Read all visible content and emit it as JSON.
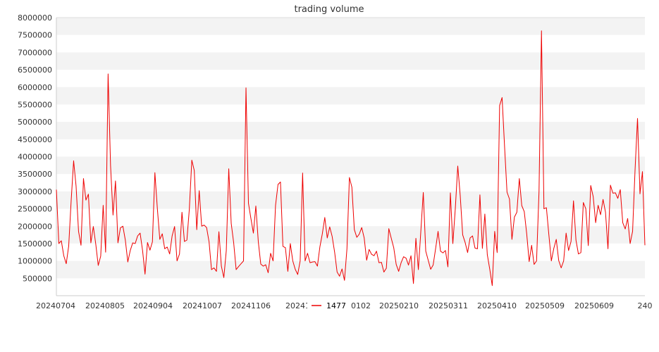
{
  "chart_data": {
    "type": "line",
    "title": "trading volume",
    "xlabel": "",
    "ylabel": "",
    "ylim": [
      0,
      8000000
    ],
    "yticks": [
      500000,
      1000000,
      1500000,
      2000000,
      2500000,
      3000000,
      3500000,
      4000000,
      4500000,
      5000000,
      5500000,
      6000000,
      6500000,
      7000000,
      7500000,
      8000000
    ],
    "xtick_labels": [
      "20240704",
      "20240805",
      "20240904",
      "20241007",
      "20241106",
      "202412",
      "0102",
      "20250210",
      "20250311",
      "20250410",
      "20250509",
      "20250609",
      "240"
    ],
    "grid": "horizontal-bands",
    "legend": {
      "position": "bottom-center",
      "entries": [
        "1477"
      ]
    },
    "series": [
      {
        "name": "1477",
        "color": "#ee0000",
        "values": [
          3050000,
          1500000,
          1580000,
          1150000,
          920000,
          1430000,
          2730000,
          3880000,
          3150000,
          1850000,
          1450000,
          3370000,
          2750000,
          2920000,
          1520000,
          1990000,
          1480000,
          870000,
          1140000,
          2600000,
          1250000,
          6380000,
          3740000,
          2320000,
          3300000,
          1520000,
          1950000,
          2000000,
          1600000,
          970000,
          1300000,
          1520000,
          1500000,
          1720000,
          1800000,
          1300000,
          620000,
          1530000,
          1310000,
          1550000,
          3540000,
          2510000,
          1620000,
          1780000,
          1350000,
          1400000,
          1200000,
          1720000,
          1990000,
          1000000,
          1200000,
          2400000,
          1560000,
          1600000,
          2500000,
          3900000,
          3600000,
          1900000,
          3020000,
          2000000,
          2030000,
          1960000,
          1550000,
          750000,
          800000,
          700000,
          1840000,
          850000,
          520000,
          1300000,
          3650000,
          2080000,
          1520000,
          750000,
          840000,
          920000,
          1000000,
          5980000,
          2660000,
          2220000,
          1800000,
          2580000,
          1550000,
          910000,
          850000,
          890000,
          660000,
          1220000,
          1000000,
          2600000,
          3200000,
          3270000,
          1420000,
          1380000,
          700000,
          1500000,
          1000000,
          760000,
          610000,
          1000000,
          3530000,
          1000000,
          1220000,
          950000,
          970000,
          980000,
          850000,
          1400000,
          1780000,
          2250000,
          1660000,
          1980000,
          1700000,
          1250000,
          680000,
          560000,
          770000,
          440000,
          1350000,
          3400000,
          3120000,
          1900000,
          1680000,
          1770000,
          1960000,
          1660000,
          1020000,
          1330000,
          1190000,
          1150000,
          1280000,
          950000,
          960000,
          680000,
          790000,
          1930000,
          1650000,
          1380000,
          900000,
          700000,
          950000,
          1120000,
          1080000,
          880000,
          1150000,
          350000,
          1650000,
          750000,
          1850000,
          2970000,
          1280000,
          1020000,
          760000,
          880000,
          1350000,
          1850000,
          1280000,
          1230000,
          1300000,
          830000,
          2960000,
          1500000,
          2500000,
          3730000,
          2880000,
          1750000,
          1530000,
          1240000,
          1660000,
          1720000,
          1370000,
          1350000,
          2900000,
          1360000,
          2350000,
          1180000,
          760000,
          290000,
          1850000,
          1240000,
          5470000,
          5700000,
          4300000,
          2980000,
          2780000,
          1620000,
          2260000,
          2400000,
          3370000,
          2590000,
          2420000,
          1780000,
          980000,
          1450000,
          900000,
          1000000,
          3000000,
          7620000,
          2500000,
          2530000,
          1750000,
          1000000,
          1360000,
          1620000,
          1010000,
          800000,
          1000000,
          1800000,
          1300000,
          1560000,
          2730000,
          1600000,
          1200000,
          1240000,
          2680000,
          2500000,
          1440000,
          3170000,
          2850000,
          2100000,
          2600000,
          2330000,
          2770000,
          2400000,
          1350000,
          3180000,
          2950000,
          2960000,
          2800000,
          3050000,
          2100000,
          1920000,
          2220000,
          1500000,
          1850000,
          3620000,
          5100000,
          2930000,
          3570000,
          1450000
        ]
      }
    ]
  }
}
